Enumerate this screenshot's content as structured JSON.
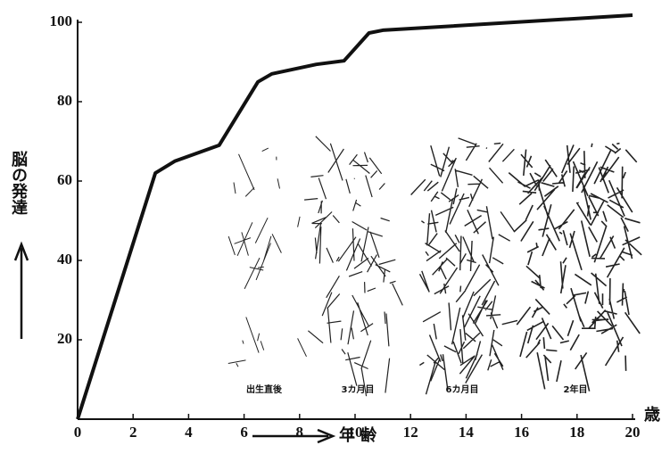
{
  "chart_data": {
    "type": "line",
    "x": [
      0,
      2.8,
      3.5,
      5.1,
      6.5,
      7,
      8.6,
      9.6,
      10.5,
      11,
      20
    ],
    "values": [
      0,
      62,
      65,
      69,
      85,
      87,
      89.4,
      90.3,
      97.3,
      98,
      101.8
    ],
    "color": "#111111",
    "xlim": [
      0,
      20
    ],
    "ylim": [
      0,
      105
    ],
    "xticks": [
      0,
      2,
      4,
      6,
      8,
      10,
      12,
      14,
      16,
      18,
      20
    ],
    "yticks": [
      20,
      40,
      60,
      80,
      100
    ],
    "x_unit": "歳",
    "xlabel": "年 齢",
    "ylabel": "脳の発達",
    "inset_captions": [
      "出生直後",
      "3カ月目",
      "6カ月目",
      "2年目"
    ]
  }
}
